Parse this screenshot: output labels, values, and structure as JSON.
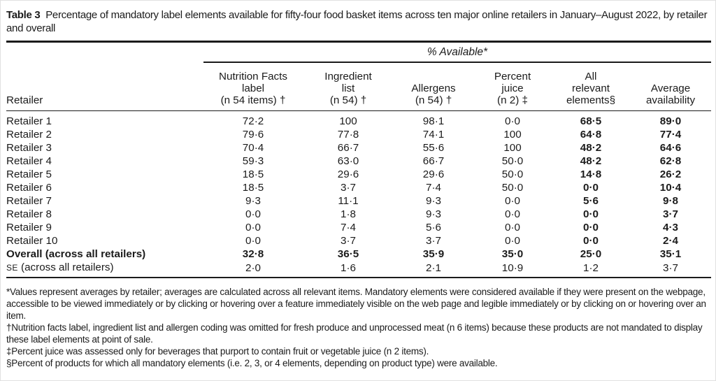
{
  "title": {
    "label": "Table 3",
    "text": "  Percentage of mandatory label elements available for fifty-four food basket items across ten major online retailers in January–August 2022, by retailer and overall"
  },
  "table": {
    "span_header": "% Available*",
    "retailer_header": "Retailer",
    "columns": [
      "Nutrition Facts\nlabel\n(n 54 items) †",
      "Ingredient\nlist\n(n 54) †",
      "Allergens\n(n 54) †",
      "Percent\njuice\n(n 2) ‡",
      "All\nrelevant\nelements§",
      "Average\navailability"
    ],
    "rows": [
      {
        "type": "data",
        "label": "Retailer 1",
        "values": [
          "72·2",
          "100",
          "98·1",
          "0·0",
          "68·5",
          "89·0"
        ]
      },
      {
        "type": "data",
        "label": "Retailer 2",
        "values": [
          "79·6",
          "77·8",
          "74·1",
          "100",
          "64·8",
          "77·4"
        ]
      },
      {
        "type": "data",
        "label": "Retailer 3",
        "values": [
          "70·4",
          "66·7",
          "55·6",
          "100",
          "48·2",
          "64·6"
        ]
      },
      {
        "type": "data",
        "label": "Retailer 4",
        "values": [
          "59·3",
          "63·0",
          "66·7",
          "50·0",
          "48·2",
          "62·8"
        ]
      },
      {
        "type": "data",
        "label": "Retailer 5",
        "values": [
          "18·5",
          "29·6",
          "29·6",
          "50·0",
          "14·8",
          "26·2"
        ]
      },
      {
        "type": "data",
        "label": "Retailer 6",
        "values": [
          "18·5",
          "3·7",
          "7·4",
          "50·0",
          "0·0",
          "10·4"
        ]
      },
      {
        "type": "data",
        "label": "Retailer 7",
        "values": [
          "9·3",
          "11·1",
          "9·3",
          "0·0",
          "5·6",
          "9·8"
        ]
      },
      {
        "type": "data",
        "label": "Retailer 8",
        "values": [
          "0·0",
          "1·8",
          "9·3",
          "0·0",
          "0·0",
          "3·7"
        ]
      },
      {
        "type": "data",
        "label": "Retailer 9",
        "values": [
          "0·0",
          "7·4",
          "5·6",
          "0·0",
          "0·0",
          "4·3"
        ]
      },
      {
        "type": "data",
        "label": "Retailer 10",
        "values": [
          "0·0",
          "3·7",
          "3·7",
          "0·0",
          "0·0",
          "2·4"
        ]
      },
      {
        "type": "total",
        "label": "Overall (across all retailers)",
        "values": [
          "32·8",
          "36·5",
          "35·9",
          "35·0",
          "25·0",
          "35·1"
        ]
      },
      {
        "type": "se",
        "sc": "SE",
        "label": " (across all retailers)",
        "values": [
          "2·0",
          "1·6",
          "2·1",
          "10·9",
          "1·2",
          "3·7"
        ]
      }
    ]
  },
  "footnotes": [
    "*Values represent averages by retailer; averages are calculated across all relevant items. Mandatory elements were considered available if they were present on the webpage, accessible to be viewed immediately or by clicking or hovering over a feature immediately visible on the web page and legible immediately or by clicking on or hovering over an item.",
    "†Nutrition facts label, ingredient list and allergen coding was omitted for fresh produce and unprocessed meat (n 6 items) because these products are not mandated to display these label elements at point of sale.",
    "‡Percent juice was assessed only for beverages that purport to contain fruit or vegetable juice (n 2 items).",
    "§Percent of products for which all mandatory elements (i.e. 2, 3, or 4 elements, depending on product type) were available."
  ],
  "colors": {
    "text": "#1b1b1b",
    "rule": "#1b1b1b",
    "background": "#ffffff"
  }
}
